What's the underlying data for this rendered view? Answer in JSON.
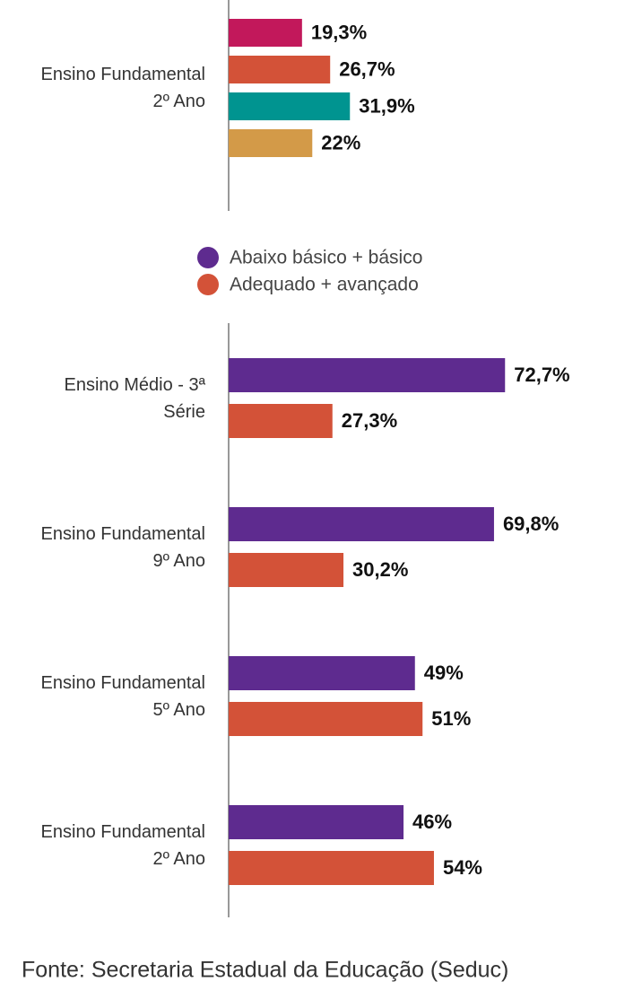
{
  "chart_data": [
    {
      "type": "bar",
      "orientation": "horizontal",
      "categories": [
        "Ensino Fundamental 2º Ano"
      ],
      "xlim": [
        0,
        100
      ],
      "series": [
        {
          "color": "#c2185b",
          "values": [
            19.3
          ],
          "value_labels": [
            "19,3%"
          ]
        },
        {
          "color": "#d35238",
          "values": [
            26.7
          ],
          "value_labels": [
            "26,7%"
          ]
        },
        {
          "color": "#009490",
          "values": [
            31.9
          ],
          "value_labels": [
            "31,9%"
          ]
        },
        {
          "color": "#d39a48",
          "values": [
            22
          ],
          "value_labels": [
            "22%"
          ]
        }
      ]
    },
    {
      "type": "bar",
      "orientation": "horizontal",
      "categories": [
        "Ensino Médio - 3ª Série",
        "Ensino Fundamental 9º Ano",
        "Ensino Fundamental 5º Ano",
        "Ensino Fundamental 2º Ano"
      ],
      "xlim": [
        0,
        100
      ],
      "legend": "top",
      "series": [
        {
          "name": "Abaixo básico + básico",
          "color": "#5e2b8f",
          "values": [
            72.7,
            69.8,
            49,
            46
          ],
          "value_labels": [
            "72,7%",
            "69,8%",
            "49%",
            "46%"
          ]
        },
        {
          "name": "Adequado + avançado",
          "color": "#d35238",
          "values": [
            27.3,
            30.2,
            51,
            54
          ],
          "value_labels": [
            "27,3%",
            "30,2%",
            "51%",
            "54%"
          ]
        }
      ]
    }
  ],
  "source": "Fonte: Secretaria Estadual da Educação (Seduc)"
}
